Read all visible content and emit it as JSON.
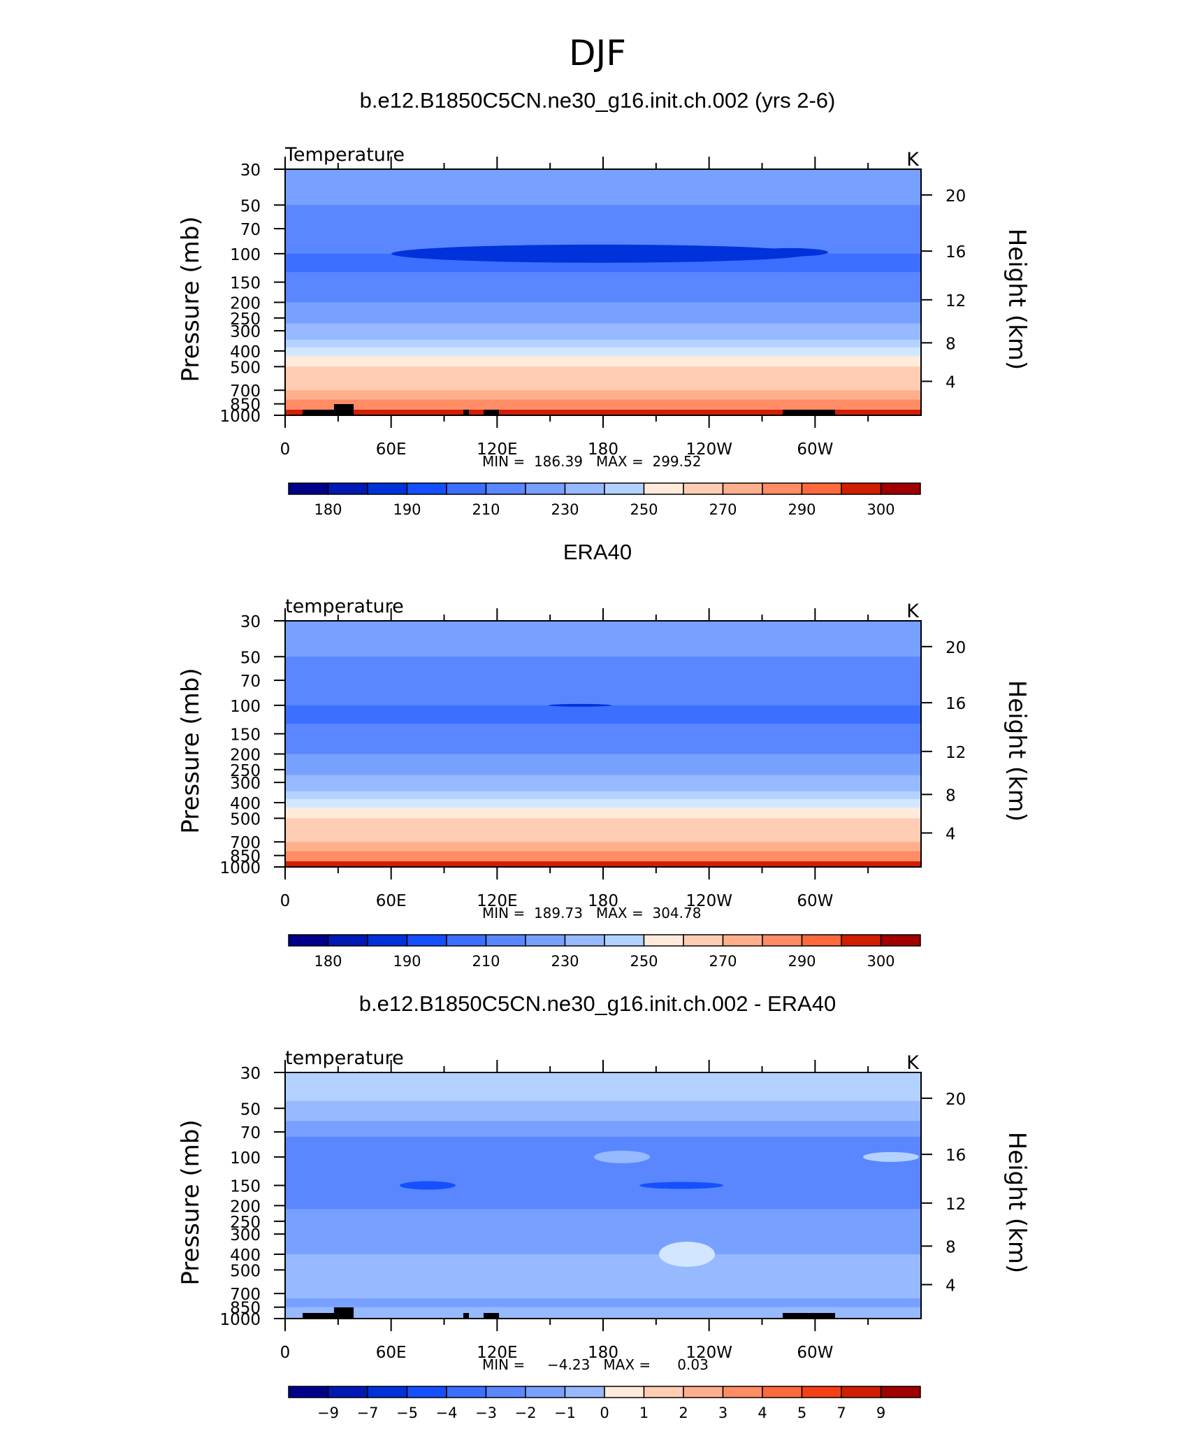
{
  "figure": {
    "title": "DJF"
  },
  "chart_data": [
    {
      "type": "heatmap",
      "title": "b.e12.B1850C5CN.ne30_g16.init.ch.002 (yrs 2-6)",
      "left_label": "Temperature",
      "units": "K",
      "ylabel": "Pressure  (mb)",
      "ylabel_right": "Height  (km)",
      "x_ticks": [
        "0",
        "60E",
        "120E",
        "180",
        "120W",
        "60W"
      ],
      "y_ticks": [
        "30",
        "50",
        "70",
        "100",
        "150",
        "200",
        "250",
        "300",
        "400",
        "500",
        "700",
        "850",
        "1000"
      ],
      "y_ticks_right": [
        "20",
        "16",
        "12",
        "8",
        "4"
      ],
      "y_scale": "log",
      "ylim": [
        1000,
        30
      ],
      "xlim": [
        0,
        360
      ],
      "stats_text": "MIN =  186.39   MAX =  299.52",
      "min": 186.39,
      "max": 299.52,
      "colorbar_labels": [
        "180",
        "190",
        "210",
        "230",
        "250",
        "270",
        "290",
        "300"
      ],
      "profile": [
        {
          "p": 30,
          "t": 218
        },
        {
          "p": 40,
          "t": 213
        },
        {
          "p": 50,
          "t": 207
        },
        {
          "p": 70,
          "t": 201
        },
        {
          "p": 100,
          "t": 196
        },
        {
          "p": 130,
          "t": 201
        },
        {
          "p": 170,
          "t": 207
        },
        {
          "p": 200,
          "t": 213
        },
        {
          "p": 230,
          "t": 218
        },
        {
          "p": 270,
          "t": 222
        },
        {
          "p": 300,
          "t": 228
        },
        {
          "p": 340,
          "t": 238
        },
        {
          "p": 380,
          "t": 248
        },
        {
          "p": 430,
          "t": 256
        },
        {
          "p": 500,
          "t": 262
        },
        {
          "p": 600,
          "t": 268
        },
        {
          "p": 700,
          "t": 274
        },
        {
          "p": 800,
          "t": 280
        },
        {
          "p": 900,
          "t": 287
        },
        {
          "p": 1000,
          "t": 297
        }
      ]
    },
    {
      "type": "heatmap",
      "title": "ERA40",
      "left_label": "temperature",
      "units": "K",
      "ylabel": "Pressure  (mb)",
      "ylabel_right": "Height  (km)",
      "x_ticks": [
        "0",
        "60E",
        "120E",
        "180",
        "120W",
        "60W"
      ],
      "y_ticks": [
        "30",
        "50",
        "70",
        "100",
        "150",
        "200",
        "250",
        "300",
        "400",
        "500",
        "700",
        "850",
        "1000"
      ],
      "y_ticks_right": [
        "20",
        "16",
        "12",
        "8",
        "4"
      ],
      "y_scale": "log",
      "ylim": [
        1000,
        30
      ],
      "xlim": [
        0,
        360
      ],
      "stats_text": "MIN =  189.73   MAX =  304.78",
      "min": 189.73,
      "max": 304.78,
      "colorbar_labels": [
        "180",
        "190",
        "210",
        "230",
        "250",
        "270",
        "290",
        "300"
      ],
      "profile": [
        {
          "p": 30,
          "t": 219
        },
        {
          "p": 40,
          "t": 214
        },
        {
          "p": 50,
          "t": 208
        },
        {
          "p": 70,
          "t": 202
        },
        {
          "p": 100,
          "t": 199
        },
        {
          "p": 130,
          "t": 203
        },
        {
          "p": 170,
          "t": 208
        },
        {
          "p": 200,
          "t": 214
        },
        {
          "p": 230,
          "t": 219
        },
        {
          "p": 270,
          "t": 223
        },
        {
          "p": 300,
          "t": 229
        },
        {
          "p": 340,
          "t": 239
        },
        {
          "p": 380,
          "t": 249
        },
        {
          "p": 430,
          "t": 257
        },
        {
          "p": 500,
          "t": 263
        },
        {
          "p": 600,
          "t": 269
        },
        {
          "p": 700,
          "t": 275
        },
        {
          "p": 800,
          "t": 281
        },
        {
          "p": 900,
          "t": 288
        },
        {
          "p": 1000,
          "t": 298
        }
      ]
    },
    {
      "type": "heatmap",
      "title": "b.e12.B1850C5CN.ne30_g16.init.ch.002 - ERA40",
      "left_label": "temperature",
      "units": "K",
      "ylabel": "Pressure  (mb)",
      "ylabel_right": "Height  (km)",
      "x_ticks": [
        "0",
        "60E",
        "120E",
        "180",
        "120W",
        "60W"
      ],
      "y_ticks": [
        "30",
        "50",
        "70",
        "100",
        "150",
        "200",
        "250",
        "300",
        "400",
        "500",
        "700",
        "850",
        "1000"
      ],
      "y_ticks_right": [
        "20",
        "16",
        "12",
        "8",
        "4"
      ],
      "y_scale": "log",
      "ylim": [
        1000,
        30
      ],
      "xlim": [
        0,
        360
      ],
      "stats_text": "MIN =     −4.23   MAX =      0.03",
      "min": -4.23,
      "max": 0.03,
      "colorbar_labels": [
        "−9",
        "−7",
        "−5",
        "−4",
        "−3",
        "−2",
        "−1",
        "0",
        "1",
        "2",
        "3",
        "4",
        "5",
        "7",
        "9"
      ],
      "profile": [
        {
          "p": 30,
          "t": -0.5
        },
        {
          "p": 45,
          "t": -1.5
        },
        {
          "p": 60,
          "t": -2.5
        },
        {
          "p": 75,
          "t": -3.5
        },
        {
          "p": 100,
          "t": -3.5
        },
        {
          "p": 130,
          "t": -3.5
        },
        {
          "p": 170,
          "t": -3.5
        },
        {
          "p": 210,
          "t": -2.5
        },
        {
          "p": 300,
          "t": -2.5
        },
        {
          "p": 400,
          "t": -1.5
        },
        {
          "p": 500,
          "t": -1.5
        },
        {
          "p": 650,
          "t": -1.5
        },
        {
          "p": 750,
          "t": -2.5
        },
        {
          "p": 850,
          "t": -1.5
        },
        {
          "p": 1000,
          "t": -1.5
        }
      ]
    }
  ],
  "palette": {
    "blue_red_17": [
      "#00008b",
      "#0019b4",
      "#0032dc",
      "#1450ff",
      "#3c6fff",
      "#5a87ff",
      "#78a0ff",
      "#96b9ff",
      "#b4d2ff",
      "#d2e6ff",
      "#ffeadc",
      "#ffcdb4",
      "#ffaf8c",
      "#ff8c64",
      "#ff693c",
      "#f54014",
      "#d21e00",
      "#a00000",
      "#780000"
    ]
  }
}
